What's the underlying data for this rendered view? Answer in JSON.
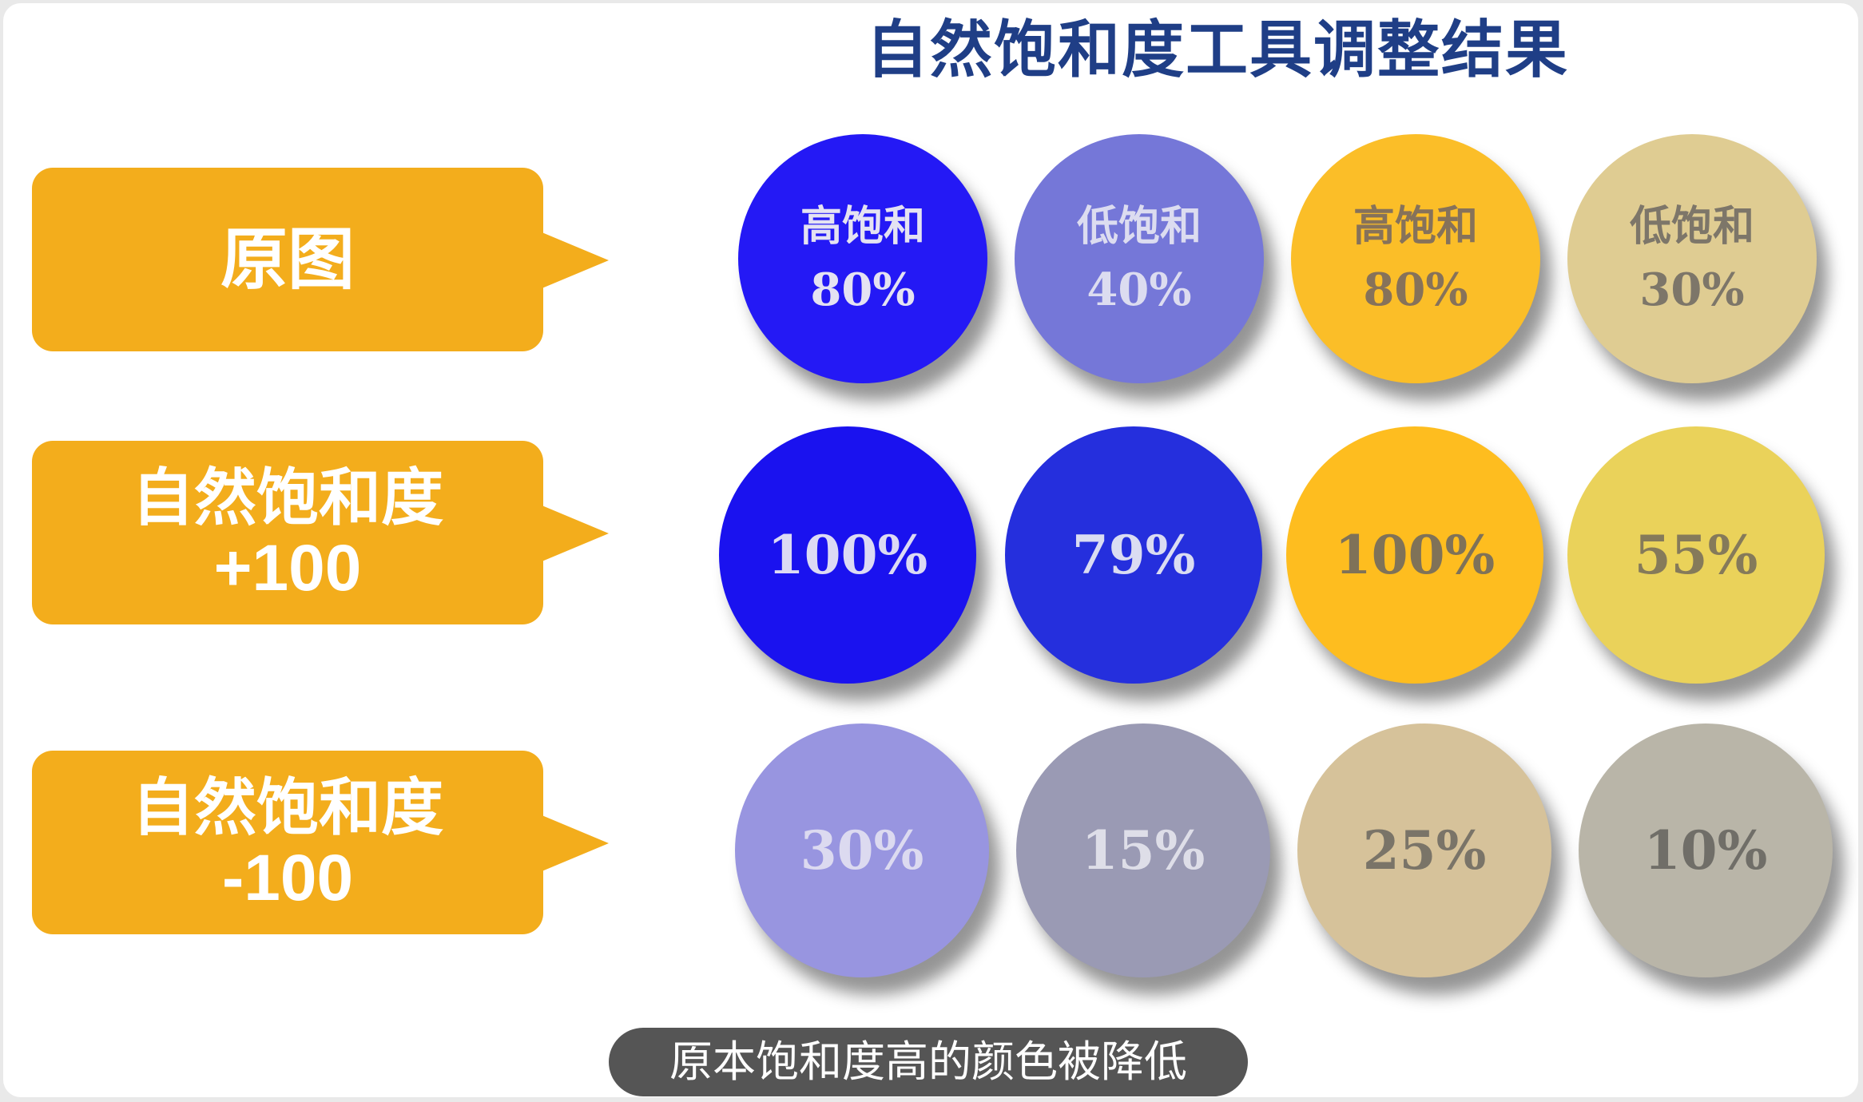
{
  "title": "自然饱和度工具调整结果",
  "caption": "原本饱和度高的颜色被降低",
  "rows": [
    {
      "label_line1": "原图",
      "label_line2": ""
    },
    {
      "label_line1": "自然饱和度",
      "label_line2": "+100"
    },
    {
      "label_line1": "自然饱和度",
      "label_line2": "-100"
    }
  ],
  "circles": [
    [
      {
        "name": "高饱和",
        "value": "80%",
        "color": "#2419f5",
        "text_color": "#e4e2f2"
      },
      {
        "name": "低饱和",
        "value": "40%",
        "color": "#7577d8",
        "text_color": "#dcdcf0"
      },
      {
        "name": "高饱和",
        "value": "80%",
        "color": "#fbbe28",
        "text_color": "#86725a"
      },
      {
        "name": "低饱和",
        "value": "30%",
        "color": "#dfcc92",
        "text_color": "#7d7669"
      }
    ],
    [
      {
        "name": "",
        "value": "100%",
        "color": "#1a12ef",
        "text_color": "#dcdaf4"
      },
      {
        "name": "",
        "value": "79%",
        "color": "#252fdd",
        "text_color": "#dadcf2"
      },
      {
        "name": "",
        "value": "100%",
        "color": "#febd1f",
        "text_color": "#7f7258"
      },
      {
        "name": "",
        "value": "55%",
        "color": "#ead25a",
        "text_color": "#857a5a"
      }
    ],
    [
      {
        "name": "",
        "value": "30%",
        "color": "#9895e0",
        "text_color": "#dcdaf0"
      },
      {
        "name": "",
        "value": "15%",
        "color": "#9a9ab4",
        "text_color": "#dedee8"
      },
      {
        "name": "",
        "value": "25%",
        "color": "#d6c29a",
        "text_color": "#7a7468"
      },
      {
        "name": "",
        "value": "10%",
        "color": "#b9b5a8",
        "text_color": "#706e68"
      }
    ]
  ]
}
